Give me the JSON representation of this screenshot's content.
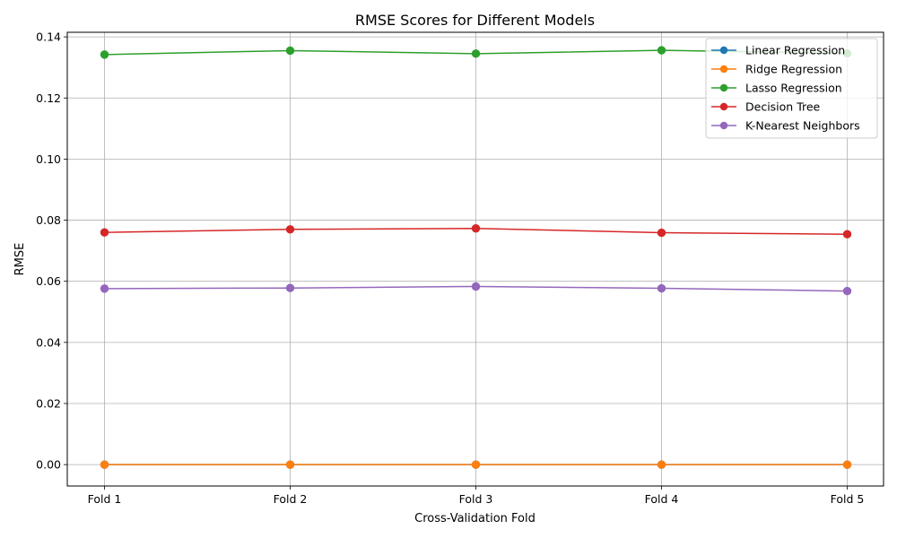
{
  "chart_data": {
    "type": "line",
    "title": "RMSE Scores for Different Models",
    "xlabel": "Cross-Validation Fold",
    "ylabel": "RMSE",
    "categories": [
      "Fold 1",
      "Fold 2",
      "Fold 3",
      "Fold 4",
      "Fold 5"
    ],
    "ylim": [
      -0.007,
      0.1415
    ],
    "yticks": [
      0.0,
      0.02,
      0.04,
      0.06,
      0.08,
      0.1,
      0.12,
      0.14
    ],
    "ytick_labels": [
      "0.00",
      "0.02",
      "0.04",
      "0.06",
      "0.08",
      "0.10",
      "0.12",
      "0.14"
    ],
    "grid": true,
    "legend_position": "top-right",
    "series": [
      {
        "name": "Linear Regression",
        "color": "#1f77b4",
        "values": [
          0.0,
          0.0,
          0.0,
          0.0,
          0.0
        ]
      },
      {
        "name": "Ridge Regression",
        "color": "#ff7f0e",
        "values": [
          0.0,
          0.0,
          0.0,
          0.0,
          0.0
        ]
      },
      {
        "name": "Lasso Regression",
        "color": "#2ca02c",
        "values": [
          0.1342,
          0.1355,
          0.1345,
          0.1356,
          0.1346
        ]
      },
      {
        "name": "Decision Tree",
        "color": "#d62728",
        "values": [
          0.076,
          0.077,
          0.0773,
          0.0759,
          0.0754
        ]
      },
      {
        "name": "K-Nearest Neighbors",
        "color": "#9467bd",
        "values": [
          0.0576,
          0.0578,
          0.0583,
          0.0577,
          0.0568
        ]
      }
    ]
  }
}
